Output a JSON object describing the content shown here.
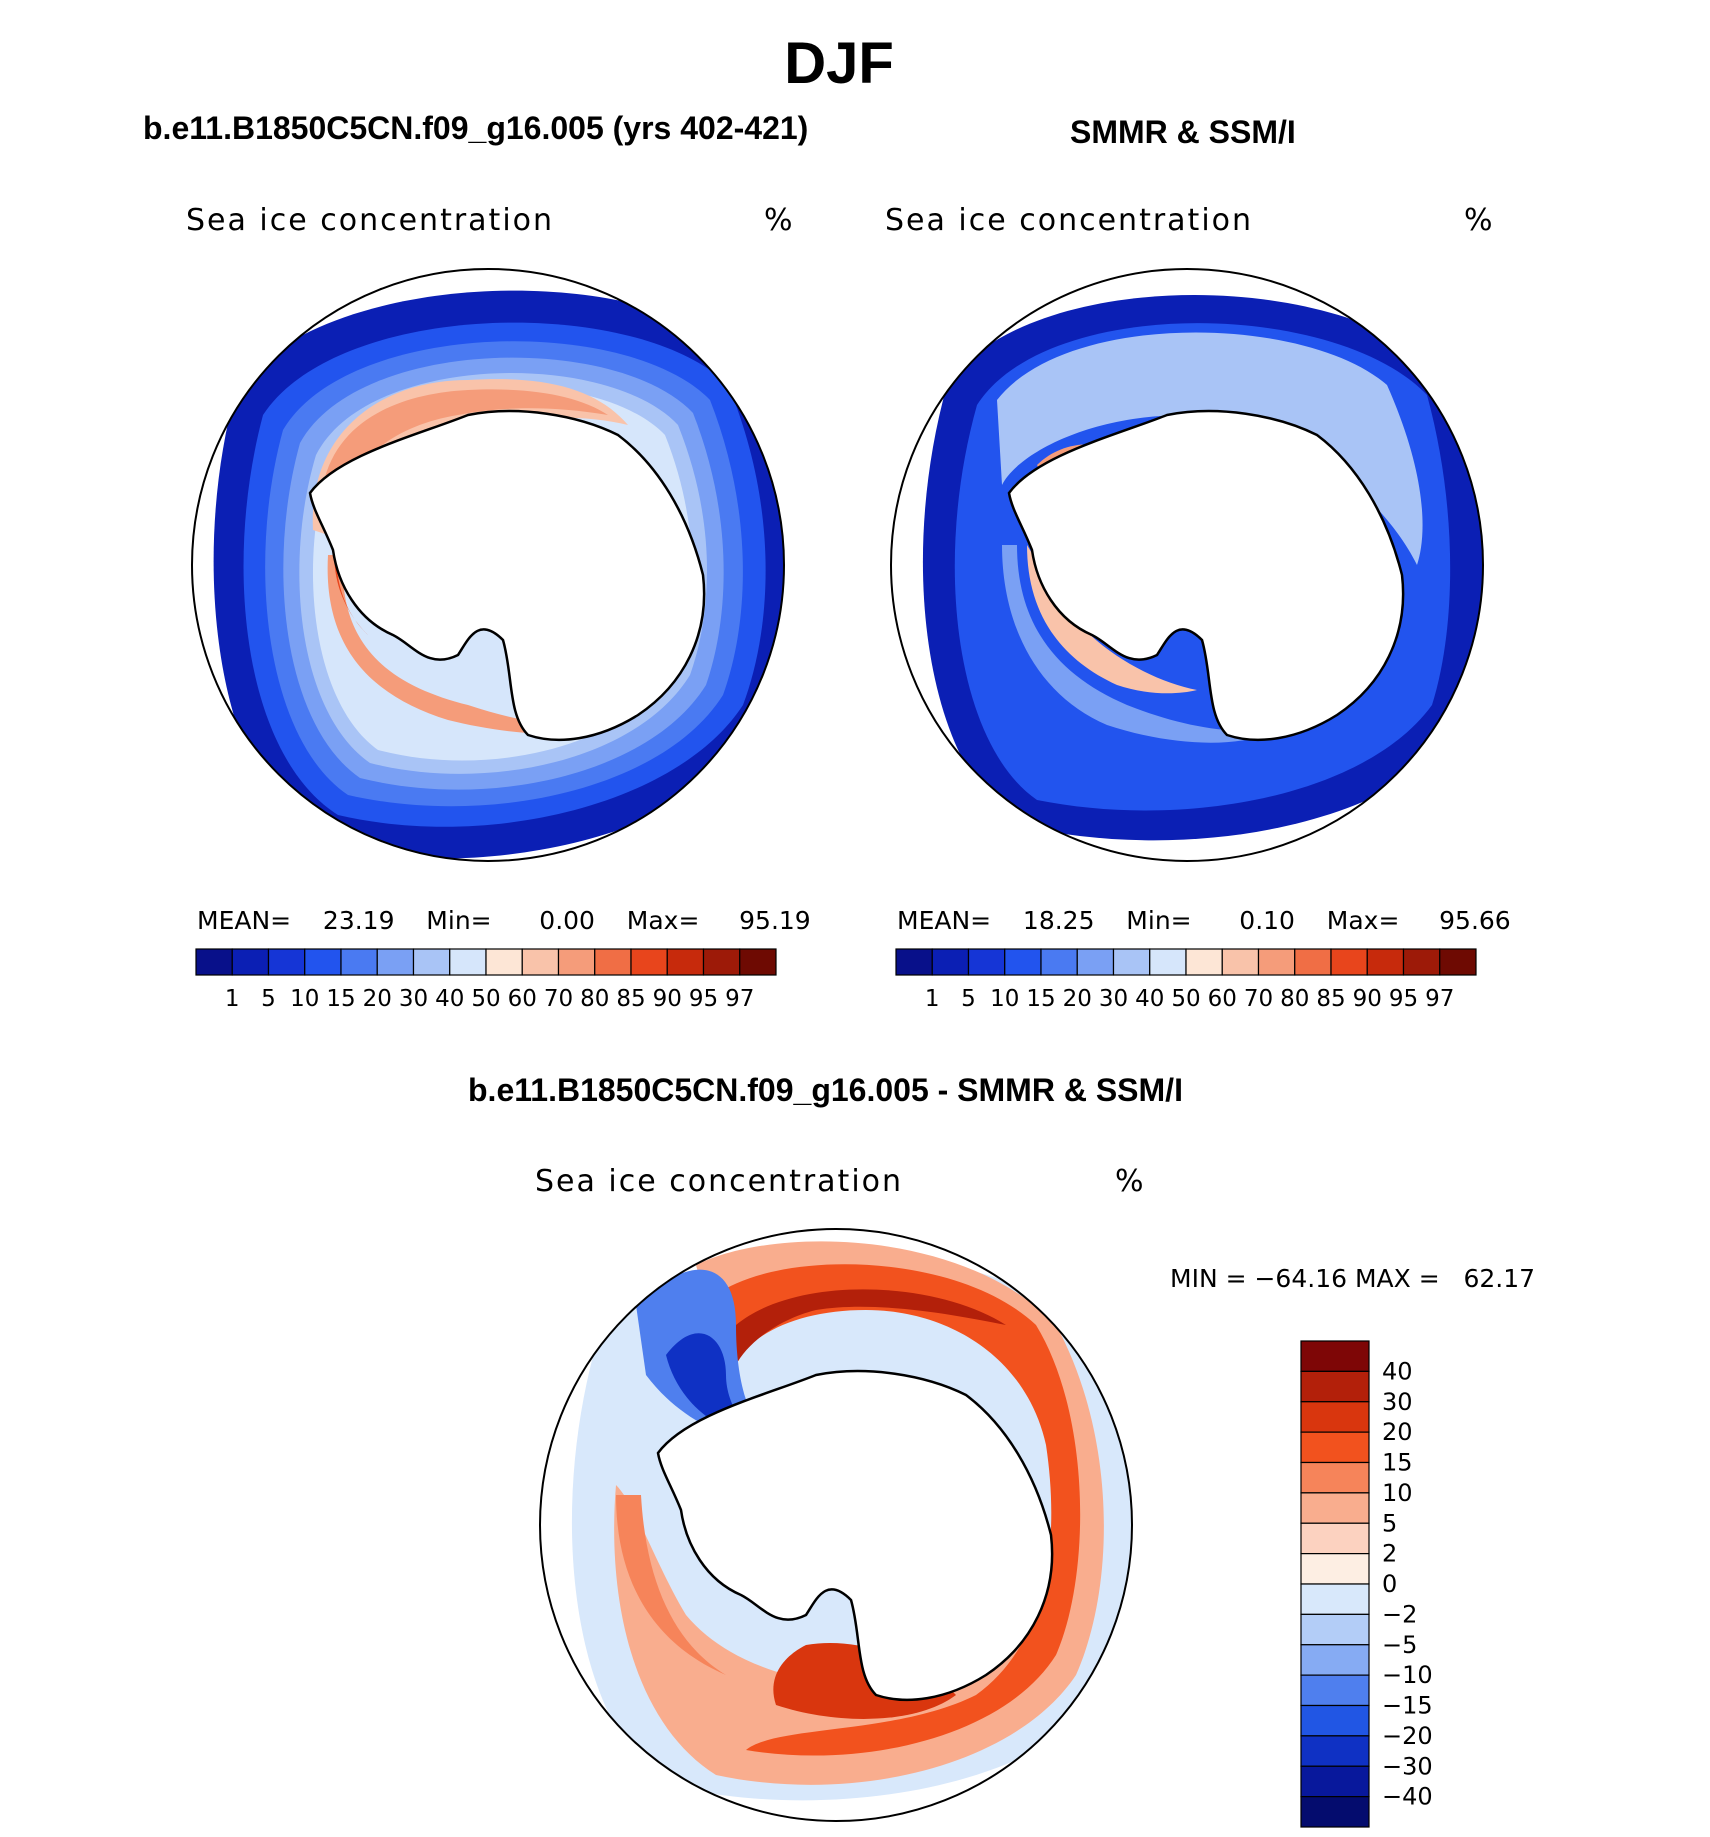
{
  "figure": {
    "season": "DJF",
    "panel_left_title": "b.e11.B1850C5CN.f09_g16.005 (yrs 402-421)",
    "panel_right_title": "SMMR & SSM/I",
    "panel_diff_title": "b.e11.B1850C5CN.f09_g16.005 - SMMR & SSM/I"
  },
  "maps": [
    {
      "id": "model",
      "variable": "Sea ice concentration",
      "units": "%",
      "stats": {
        "mean_label": "MEAN=",
        "mean": "23.19",
        "min_label": "Min=",
        "min": "0.00",
        "max_label": "Max=",
        "max": "95.19"
      }
    },
    {
      "id": "obs",
      "variable": "Sea ice concentration",
      "units": "%",
      "stats": {
        "mean_label": "MEAN=",
        "mean": "18.25",
        "min_label": "Min=",
        "min": "0.10",
        "max_label": "Max=",
        "max": "95.66"
      }
    },
    {
      "id": "diff",
      "variable": "Sea ice concentration",
      "units": "%",
      "stats": {
        "text": "MIN = −64.16 MAX =   62.17"
      }
    }
  ],
  "colorbar_conc": {
    "ticks": [
      "1",
      "5",
      "10",
      "15",
      "20",
      "30",
      "40",
      "50",
      "60",
      "70",
      "80",
      "85",
      "90",
      "95",
      "97"
    ],
    "colors": [
      "#08108a",
      "#0b1fb4",
      "#1535d6",
      "#2254ee",
      "#4a7af2",
      "#7aa0f4",
      "#a9c4f6",
      "#d6e6fb",
      "#fde6d6",
      "#f9c3aa",
      "#f59c7a",
      "#f06e45",
      "#e8451c",
      "#c72a0c",
      "#9d1a08",
      "#6e0a02"
    ]
  },
  "colorbar_diff": {
    "ticks": [
      "40",
      "30",
      "20",
      "15",
      "10",
      "5",
      "2",
      "0",
      "−2",
      "−5",
      "−10",
      "−15",
      "−20",
      "−30",
      "−40"
    ],
    "colors": [
      "#7e0606",
      "#b3200a",
      "#d9360e",
      "#f2521e",
      "#f6845a",
      "#f9ad8e",
      "#fcd2c0",
      "#fdeee3",
      "#d8e8fb",
      "#b3cdf7",
      "#86abf3",
      "#4f7fee",
      "#2156e4",
      "#0f31c4",
      "#08189c",
      "#040c6e"
    ]
  }
}
